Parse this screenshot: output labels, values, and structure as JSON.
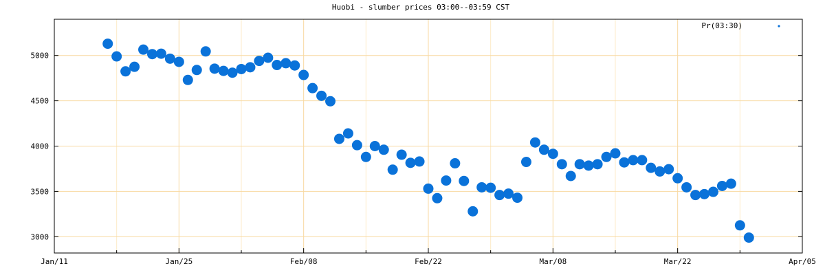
{
  "chart_data": {
    "type": "scatter",
    "title": "Huobi - slumber prices 03:00--03:59 CST",
    "xlabel": "",
    "ylabel": "",
    "x_ticks": [
      "Jan/11",
      "Jan/25",
      "Feb/08",
      "Feb/22",
      "Mar/08",
      "Mar/22",
      "Apr/05"
    ],
    "x_range": [
      "Jan/11",
      "Apr/05"
    ],
    "ylim": [
      2820,
      5400
    ],
    "y_ticks": [
      3000,
      3500,
      4000,
      4500,
      5000
    ],
    "grid": true,
    "legend_position": "top-right",
    "series": [
      {
        "name": "Pr(03:30)",
        "color": "#0a72d9",
        "points": [
          [
            "Jan/17",
            5130
          ],
          [
            "Jan/18",
            4990
          ],
          [
            "Jan/19",
            4825
          ],
          [
            "Jan/20",
            4875
          ],
          [
            "Jan/21",
            5065
          ],
          [
            "Jan/22",
            5015
          ],
          [
            "Jan/23",
            5020
          ],
          [
            "Jan/24",
            4965
          ],
          [
            "Jan/25",
            4930
          ],
          [
            "Jan/26",
            4730
          ],
          [
            "Jan/27",
            4840
          ],
          [
            "Jan/28",
            5045
          ],
          [
            "Jan/29",
            4855
          ],
          [
            "Jan/30",
            4830
          ],
          [
            "Jan/31",
            4810
          ],
          [
            "Feb/01",
            4850
          ],
          [
            "Feb/02",
            4870
          ],
          [
            "Feb/03",
            4940
          ],
          [
            "Feb/04",
            4975
          ],
          [
            "Feb/05",
            4895
          ],
          [
            "Feb/06",
            4915
          ],
          [
            "Feb/07",
            4890
          ],
          [
            "Feb/08",
            4785
          ],
          [
            "Feb/09",
            4640
          ],
          [
            "Feb/10",
            4555
          ],
          [
            "Feb/11",
            4495
          ],
          [
            "Feb/12",
            4080
          ],
          [
            "Feb/13",
            4140
          ],
          [
            "Feb/14",
            4010
          ],
          [
            "Feb/15",
            3880
          ],
          [
            "Feb/16",
            4000
          ],
          [
            "Feb/17",
            3960
          ],
          [
            "Feb/18",
            3740
          ],
          [
            "Feb/19",
            3905
          ],
          [
            "Feb/20",
            3815
          ],
          [
            "Feb/21",
            3830
          ],
          [
            "Feb/22",
            3530
          ],
          [
            "Feb/23",
            3425
          ],
          [
            "Feb/24",
            3620
          ],
          [
            "Feb/25",
            3810
          ],
          [
            "Feb/26",
            3615
          ],
          [
            "Feb/27",
            3280
          ],
          [
            "Feb/28",
            3545
          ],
          [
            "Mar/01",
            3540
          ],
          [
            "Mar/02",
            3460
          ],
          [
            "Mar/03",
            3475
          ],
          [
            "Mar/04",
            3430
          ],
          [
            "Mar/05",
            3825
          ],
          [
            "Mar/06",
            4040
          ],
          [
            "Mar/07",
            3960
          ],
          [
            "Mar/08",
            3915
          ],
          [
            "Mar/09",
            3800
          ],
          [
            "Mar/10",
            3670
          ],
          [
            "Mar/11",
            3800
          ],
          [
            "Mar/12",
            3785
          ],
          [
            "Mar/13",
            3800
          ],
          [
            "Mar/14",
            3880
          ],
          [
            "Mar/15",
            3920
          ],
          [
            "Mar/16",
            3820
          ],
          [
            "Mar/17",
            3845
          ],
          [
            "Mar/18",
            3845
          ],
          [
            "Mar/19",
            3760
          ],
          [
            "Mar/20",
            3720
          ],
          [
            "Mar/21",
            3745
          ],
          [
            "Mar/22",
            3645
          ],
          [
            "Mar/23",
            3545
          ],
          [
            "Mar/24",
            3460
          ],
          [
            "Mar/25",
            3470
          ],
          [
            "Mar/26",
            3495
          ],
          [
            "Mar/27",
            3560
          ],
          [
            "Mar/28",
            3585
          ],
          [
            "Mar/29",
            3125
          ],
          [
            "Mar/30",
            2990
          ]
        ]
      }
    ]
  }
}
